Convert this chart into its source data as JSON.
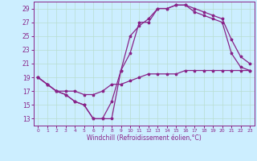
{
  "xlabel": "Windchill (Refroidissement éolien,°C)",
  "bg_color": "#cceeff",
  "grid_color": "#b8ddd0",
  "line_color": "#882288",
  "xlim": [
    -0.5,
    23.5
  ],
  "ylim": [
    12,
    30
  ],
  "yticks": [
    13,
    15,
    17,
    19,
    21,
    23,
    25,
    27,
    29
  ],
  "xticks": [
    0,
    1,
    2,
    3,
    4,
    5,
    6,
    7,
    8,
    9,
    10,
    11,
    12,
    13,
    14,
    15,
    16,
    17,
    18,
    19,
    20,
    21,
    22,
    23
  ],
  "line1_x": [
    0,
    1,
    2,
    3,
    4,
    5,
    6,
    7,
    8,
    9,
    10,
    11,
    12,
    13,
    14,
    15,
    16,
    17,
    18,
    19,
    20,
    21,
    22,
    23
  ],
  "line1_y": [
    19,
    18,
    17,
    16.5,
    15.5,
    15,
    13,
    13,
    15.5,
    20,
    25,
    26.5,
    27.5,
    29,
    29,
    29.5,
    29.5,
    29,
    28.5,
    28,
    27.5,
    24.5,
    22,
    21
  ],
  "line2_x": [
    0,
    1,
    2,
    3,
    4,
    5,
    6,
    7,
    8,
    9,
    10,
    11,
    12,
    13,
    14,
    15,
    16,
    17,
    18,
    19,
    20,
    21,
    22,
    23
  ],
  "line2_y": [
    19,
    18,
    17,
    16.5,
    15.5,
    15,
    13,
    13,
    13,
    20,
    22.5,
    27,
    27,
    29,
    29,
    29.5,
    29.5,
    28.5,
    28,
    27.5,
    27,
    22.5,
    20.5,
    20
  ],
  "line3_x": [
    0,
    1,
    2,
    3,
    4,
    5,
    6,
    7,
    8,
    9,
    10,
    11,
    12,
    13,
    14,
    15,
    16,
    17,
    18,
    19,
    20,
    21,
    22,
    23
  ],
  "line3_y": [
    19,
    18,
    17,
    17,
    17,
    16.5,
    16.5,
    17,
    18,
    18,
    18.5,
    19,
    19.5,
    19.5,
    19.5,
    19.5,
    20,
    20,
    20,
    20,
    20,
    20,
    20,
    20
  ]
}
